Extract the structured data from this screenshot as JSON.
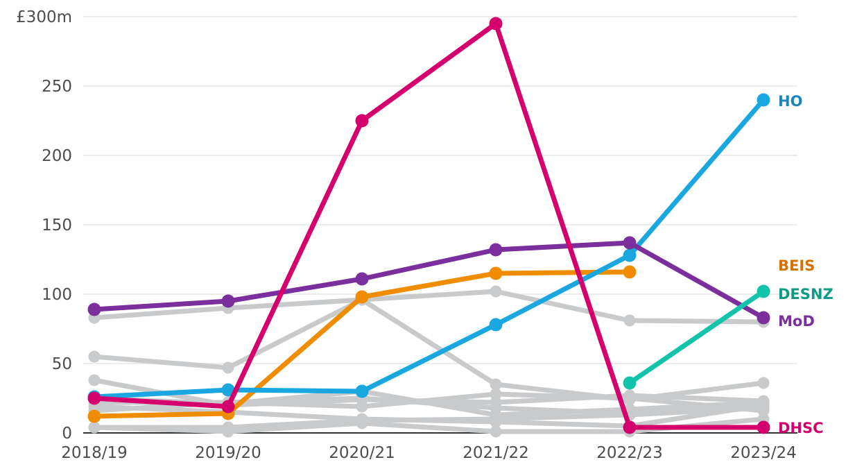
{
  "chart_data": {
    "type": "line",
    "title": "",
    "xlabel": "",
    "ylabel": "",
    "y_unit_label": "£300m",
    "ylim": [
      0,
      300
    ],
    "y_ticks": [
      0,
      50,
      100,
      150,
      200,
      250,
      300
    ],
    "y_tick_labels": [
      "0",
      "50",
      "100",
      "150",
      "200",
      "250",
      "£300m"
    ],
    "categories": [
      "2018/19",
      "2019/20",
      "2020/21",
      "2021/22",
      "2022/23",
      "2023/24"
    ],
    "grid": true,
    "colors": {
      "HO": "#1aa7e0",
      "BEIS": "#f08c00",
      "DESNZ": "#13c4ab",
      "MoD": "#7b2f9c",
      "DHSC": "#d4006e",
      "other": "#c8cacc",
      "HO_label": "#1a86b8",
      "BEIS_label": "#d07300",
      "DESNZ_label": "#0e9b85"
    },
    "series": [
      {
        "name": "",
        "highlight": false,
        "values": [
          83,
          90,
          96,
          102,
          81,
          80
        ]
      },
      {
        "name": "",
        "highlight": false,
        "values": [
          55,
          47,
          96,
          35,
          24,
          36
        ]
      },
      {
        "name": "",
        "highlight": false,
        "values": [
          38,
          20,
          24,
          22,
          27,
          23
        ]
      },
      {
        "name": "",
        "highlight": false,
        "values": [
          22,
          22,
          25,
          18,
          14,
          21
        ]
      },
      {
        "name": "",
        "highlight": false,
        "values": [
          19,
          15,
          10,
          8,
          5,
          20
        ]
      },
      {
        "name": "",
        "highlight": false,
        "values": [
          16,
          22,
          19,
          28,
          25,
          16
        ]
      },
      {
        "name": "",
        "highlight": false,
        "values": [
          4,
          4,
          9,
          10,
          13,
          18
        ]
      },
      {
        "name": "",
        "highlight": false,
        "values": [
          4,
          1,
          7,
          1,
          1,
          10
        ]
      },
      {
        "name": "",
        "highlight": false,
        "values": [
          25,
          21,
          30,
          13,
          17,
          22
        ]
      },
      {
        "name": "HO",
        "highlight": true,
        "values": [
          26,
          31,
          30,
          78,
          128,
          240
        ]
      },
      {
        "name": "BEIS",
        "highlight": true,
        "values": [
          12,
          14,
          98,
          115,
          116,
          null
        ]
      },
      {
        "name": "DESNZ",
        "highlight": true,
        "values": [
          null,
          null,
          null,
          null,
          36,
          102
        ]
      },
      {
        "name": "MoD",
        "highlight": true,
        "values": [
          89,
          95,
          111,
          132,
          137,
          83
        ]
      },
      {
        "name": "DHSC",
        "highlight": true,
        "values": [
          25,
          19,
          225,
          295,
          4,
          4
        ]
      }
    ],
    "labels": [
      {
        "series": "HO",
        "text": "HO"
      },
      {
        "series": "BEIS",
        "text": "BEIS"
      },
      {
        "series": "DESNZ",
        "text": "DESNZ"
      },
      {
        "series": "MoD",
        "text": "MoD"
      },
      {
        "series": "DHSC",
        "text": "DHSC"
      }
    ]
  }
}
